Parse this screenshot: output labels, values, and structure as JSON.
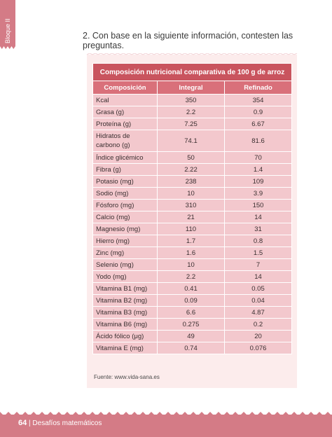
{
  "side_tab": {
    "label": "Bloque II"
  },
  "question": "2. Con base en la siguiente información, contesten las preguntas.",
  "table": {
    "title": "Composición nutricional comparativa de 100 g de arroz",
    "headers": [
      "Composición",
      "Integral",
      "Refinado"
    ],
    "rows": [
      [
        "Kcal",
        "350",
        "354"
      ],
      [
        "Grasa (g)",
        "2.2",
        "0.9"
      ],
      [
        "Proteína (g)",
        "7.25",
        "6.67"
      ],
      [
        "Hidratos de carbono (g)",
        "74.1",
        "81.6"
      ],
      [
        "Índice glicémico",
        "50",
        "70"
      ],
      [
        "Fibra (g)",
        "2.22",
        "1.4"
      ],
      [
        "Potasio (mg)",
        "238",
        "109"
      ],
      [
        "Sodio (mg)",
        "10",
        "3.9"
      ],
      [
        "Fósforo (mg)",
        "310",
        "150"
      ],
      [
        "Calcio (mg)",
        "21",
        "14"
      ],
      [
        "Magnesio (mg)",
        "110",
        "31"
      ],
      [
        "Hierro (mg)",
        "1.7",
        "0.8"
      ],
      [
        "Zinc (mg)",
        "1.6",
        "1.5"
      ],
      [
        "Selenio (mg)",
        "10",
        "7"
      ],
      [
        "Yodo (mg)",
        "2.2",
        "14"
      ],
      [
        "Vitamina B1 (mg)",
        "0.41",
        "0.05"
      ],
      [
        "Vitamina B2 (mg)",
        "0.09",
        "0.04"
      ],
      [
        "Vitamina B3 (mg)",
        "6.6",
        "4.87"
      ],
      [
        "Vitamina B6 (mg)",
        "0.275",
        "0.2"
      ],
      [
        "Ácido fólico (μg)",
        "49",
        "20"
      ],
      [
        "Vitamina E (mg)",
        "0.74",
        "0.076"
      ]
    ]
  },
  "source": "Fuente: www.vida-sana.es",
  "footer": {
    "page_number": "64",
    "separator": "|",
    "book_title": "Desafíos matemáticos"
  },
  "colors": {
    "accent": "#d47b86",
    "header_dark": "#c9545e",
    "header": "#d9707a",
    "cell": "#f3c8cd",
    "card": "#fcecec"
  }
}
